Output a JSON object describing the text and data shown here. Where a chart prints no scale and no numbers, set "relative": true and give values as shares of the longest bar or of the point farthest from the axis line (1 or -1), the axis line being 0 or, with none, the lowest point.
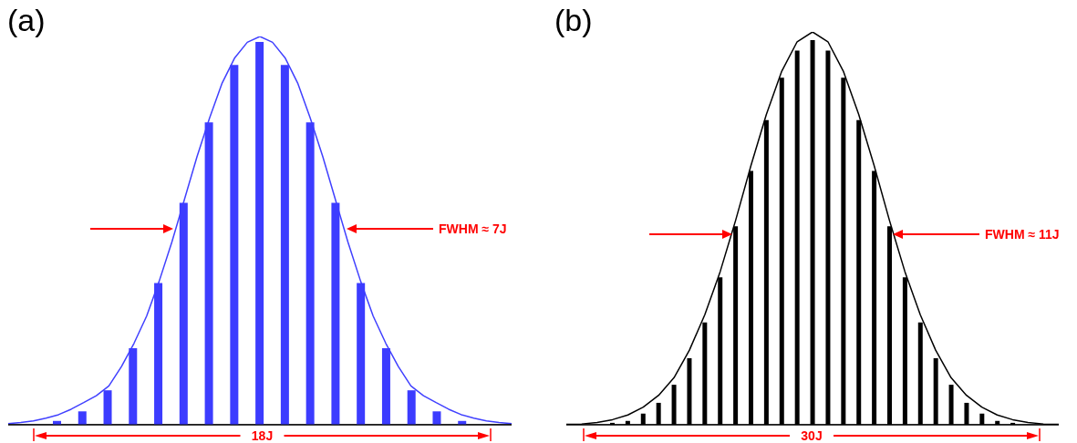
{
  "chart_data": [
    {
      "type": "line",
      "title": "(a)",
      "relative": true,
      "color": "#4040ff",
      "categories": [
        null,
        null,
        null,
        null,
        null,
        null,
        null,
        null,
        null,
        null,
        null,
        null,
        null,
        null,
        null,
        null,
        null,
        null,
        null,
        null,
        null,
        null,
        null,
        null,
        null,
        null,
        null,
        null,
        null,
        null,
        null,
        null,
        null,
        null,
        null,
        null,
        null,
        null,
        null,
        null,
        null
      ],
      "values": [
        0.003,
        0.006,
        0.01,
        0.017,
        0.026,
        0.04,
        0.057,
        0.075,
        0.1,
        0.15,
        0.21,
        0.28,
        0.37,
        0.47,
        0.58,
        0.69,
        0.79,
        0.88,
        0.945,
        0.985,
        1,
        0.985,
        0.945,
        0.88,
        0.79,
        0.69,
        0.58,
        0.47,
        0.37,
        0.28,
        0.21,
        0.15,
        0.1,
        0.075,
        0.057,
        0.04,
        0.026,
        0.017,
        0.01,
        0.006,
        0.003
      ],
      "annotations": [
        "FWHM ≈ 7J",
        "18J"
      ]
    },
    {
      "type": "bar",
      "relative": true,
      "color": "#3c3cff",
      "categories": [
        null,
        null,
        null,
        null,
        null,
        null,
        null,
        null,
        null,
        null,
        null,
        null,
        null,
        null,
        null,
        null,
        null
      ],
      "values": [
        0.01,
        0.035,
        0.09,
        0.2,
        0.37,
        0.58,
        0.79,
        0.94,
        1,
        0.94,
        0.79,
        0.58,
        0.37,
        0.2,
        0.09,
        0.035,
        0.01
      ]
    },
    {
      "type": "line",
      "title": "(b)",
      "relative": true,
      "color": "#000000",
      "categories": [
        null,
        null,
        null,
        null,
        null,
        null,
        null,
        null,
        null,
        null,
        null,
        null,
        null,
        null,
        null,
        null,
        null,
        null,
        null,
        null,
        null,
        null,
        null,
        null,
        null,
        null,
        null,
        null,
        null,
        null,
        null,
        null,
        null
      ],
      "values": [
        0.001,
        0.002,
        0.006,
        0.013,
        0.025,
        0.045,
        0.075,
        0.12,
        0.19,
        0.28,
        0.39,
        0.52,
        0.66,
        0.79,
        0.9,
        0.975,
        1,
        0.975,
        0.9,
        0.79,
        0.66,
        0.52,
        0.39,
        0.28,
        0.19,
        0.12,
        0.075,
        0.045,
        0.025,
        0.013,
        0.006,
        0.002,
        0.001
      ],
      "annotations": [
        "FWHM ≈ 11J",
        "30J"
      ]
    },
    {
      "type": "bar",
      "relative": true,
      "color": "#000000",
      "categories": [
        null,
        null,
        null,
        null,
        null,
        null,
        null,
        null,
        null,
        null,
        null,
        null,
        null,
        null,
        null,
        null,
        null,
        null,
        null,
        null,
        null,
        null,
        null,
        null,
        null,
        null,
        null
      ],
      "values": [
        0.005,
        0.01,
        0.029,
        0.057,
        0.104,
        0.173,
        0.266,
        0.383,
        0.516,
        0.66,
        0.792,
        0.902,
        0.973,
        1,
        0.973,
        0.902,
        0.792,
        0.66,
        0.516,
        0.383,
        0.266,
        0.173,
        0.104,
        0.057,
        0.029,
        0.01,
        0.005
      ]
    }
  ]
}
